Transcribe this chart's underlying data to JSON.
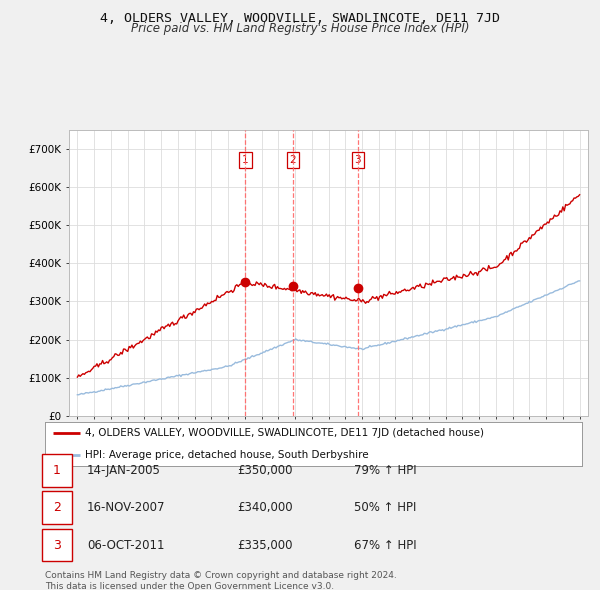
{
  "title": "4, OLDERS VALLEY, WOODVILLE, SWADLINCOTE, DE11 7JD",
  "subtitle": "Price paid vs. HM Land Registry's House Price Index (HPI)",
  "ylim": [
    0,
    750000
  ],
  "yticks": [
    0,
    100000,
    200000,
    300000,
    400000,
    500000,
    600000,
    700000
  ],
  "ytick_labels": [
    "£0",
    "£100K",
    "£200K",
    "£300K",
    "£400K",
    "£500K",
    "£600K",
    "£700K"
  ],
  "background_color": "#f0f0f0",
  "plot_bg_color": "#ffffff",
  "grid_color": "#dddddd",
  "sale_dates": [
    2005.04,
    2007.88,
    2011.76
  ],
  "sale_prices": [
    350000,
    340000,
    335000
  ],
  "sale_labels": [
    "1",
    "2",
    "3"
  ],
  "vline_color": "#ff6666",
  "sale_marker_color": "#cc0000",
  "hpi_line_color": "#99bbdd",
  "red_line_color": "#cc0000",
  "legend_red_label": "4, OLDERS VALLEY, WOODVILLE, SWADLINCOTE, DE11 7JD (detached house)",
  "legend_blue_label": "HPI: Average price, detached house, South Derbyshire",
  "table_rows": [
    [
      "1",
      "14-JAN-2005",
      "£350,000",
      "79% ↑ HPI"
    ],
    [
      "2",
      "16-NOV-2007",
      "£340,000",
      "50% ↑ HPI"
    ],
    [
      "3",
      "06-OCT-2011",
      "£335,000",
      "67% ↑ HPI"
    ]
  ],
  "footer_text": "Contains HM Land Registry data © Crown copyright and database right 2024.\nThis data is licensed under the Open Government Licence v3.0.",
  "title_fontsize": 9.5,
  "subtitle_fontsize": 8.5,
  "tick_fontsize": 7.5,
  "legend_fontsize": 8
}
